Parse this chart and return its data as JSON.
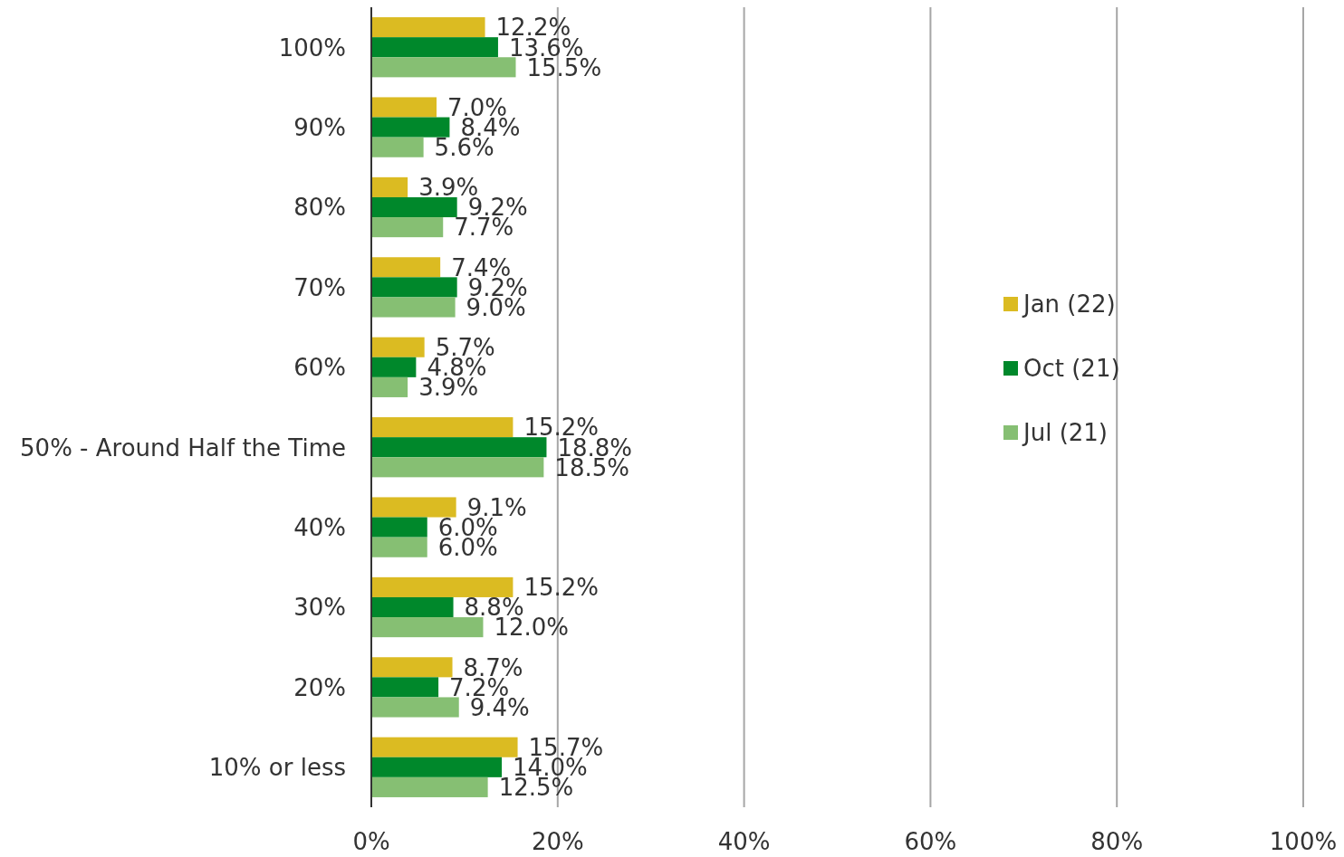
{
  "chart_data": {
    "type": "bar",
    "orientation": "horizontal",
    "categories": [
      "100%",
      "90%",
      "80%",
      "70%",
      "60%",
      "50% - Around Half the Time",
      "40%",
      "30%",
      "20%",
      "10% or less"
    ],
    "series": [
      {
        "name": "Jan (22)",
        "color": "#dbbb22",
        "values": [
          12.2,
          7.0,
          3.9,
          7.4,
          5.7,
          15.2,
          9.1,
          15.2,
          8.7,
          15.7
        ],
        "value_labels": [
          "12.2%",
          "7.0%",
          "3.9%",
          "7.4%",
          "5.7%",
          "15.2%",
          "9.1%",
          "15.2%",
          "8.7%",
          "15.7%"
        ]
      },
      {
        "name": "Oct (21)",
        "color": "#00882b",
        "values": [
          13.6,
          8.4,
          9.2,
          9.2,
          4.8,
          18.8,
          6.0,
          8.8,
          7.2,
          14.0
        ],
        "value_labels": [
          "13.6%",
          "8.4%",
          "9.2%",
          "9.2%",
          "4.8%",
          "18.8%",
          "6.0%",
          "8.8%",
          "7.2%",
          "14.0%"
        ]
      },
      {
        "name": "Jul (21)",
        "color": "#86bf73",
        "values": [
          15.5,
          5.6,
          7.7,
          9.0,
          3.9,
          18.5,
          6.0,
          12.0,
          9.4,
          12.5
        ],
        "value_labels": [
          "15.5%",
          "5.6%",
          "7.7%",
          "9.0%",
          "3.9%",
          "18.5%",
          "6.0%",
          "12.0%",
          "9.4%",
          "12.5%"
        ]
      }
    ],
    "xlim": [
      0,
      100
    ],
    "xticks": [
      {
        "value": 0,
        "label": "0%"
      },
      {
        "value": 20,
        "label": "20%"
      },
      {
        "value": 40,
        "label": "40%"
      },
      {
        "value": 60,
        "label": "60%"
      },
      {
        "value": 80,
        "label": "80%"
      },
      {
        "value": 100,
        "label": "100%"
      }
    ],
    "grid": "x",
    "legend": "right"
  }
}
